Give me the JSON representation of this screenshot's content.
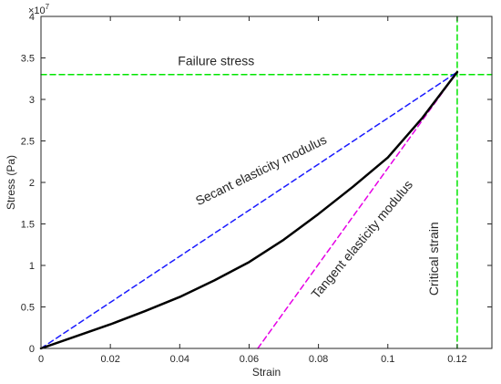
{
  "chart_data": {
    "type": "line",
    "xlabel": "Strain",
    "ylabel": "Stress (Pa)",
    "y_exponent_label": "×10",
    "y_exponent_power": "7",
    "xlim": [
      0,
      0.13
    ],
    "ylim": [
      0,
      40000000
    ],
    "x_ticks": [
      0,
      0.02,
      0.04,
      0.06,
      0.08,
      0.1,
      0.12
    ],
    "x_tick_labels": [
      "0",
      "0.02",
      "0.04",
      "0.06",
      "0.08",
      "0.1",
      "0.12"
    ],
    "y_ticks": [
      0,
      5000000,
      10000000,
      15000000,
      20000000,
      25000000,
      30000000,
      35000000,
      40000000
    ],
    "y_tick_labels": [
      "0",
      "0.5",
      "1",
      "1.5",
      "2",
      "2.5",
      "3",
      "3.5",
      "4"
    ],
    "grid": false,
    "series": [
      {
        "kind": "stress-strain curve",
        "color": "#000000",
        "style": "solid",
        "x": [
          0,
          0.01,
          0.02,
          0.03,
          0.04,
          0.05,
          0.06,
          0.07,
          0.08,
          0.09,
          0.1,
          0.11,
          0.12
        ],
        "y": [
          0,
          1450000,
          2900000,
          4500000,
          6200000,
          8200000,
          10400000,
          13100000,
          16200000,
          19500000,
          23000000,
          27800000,
          33300000
        ]
      },
      {
        "kind": "secant line",
        "color": "#1a1aff",
        "style": "dashed",
        "x": [
          0,
          0.12
        ],
        "y": [
          0,
          33300000
        ]
      },
      {
        "kind": "tangent line",
        "color": "#e600e6",
        "style": "dashed",
        "x": [
          0.0625,
          0.12
        ],
        "y": [
          0,
          33300000
        ]
      },
      {
        "kind": "failure stress level",
        "color": "#00e600",
        "style": "dashed",
        "orientation": "horizontal",
        "value": 33000000
      },
      {
        "kind": "critical strain level",
        "color": "#00e600",
        "style": "dashed",
        "orientation": "vertical",
        "value": 0.12
      }
    ],
    "annotations": [
      {
        "text": "Failure stress",
        "x": 0.0505,
        "y": 34100000,
        "rotation_deg": 0
      },
      {
        "text": "Secant elasticity modulus",
        "x": 0.064,
        "y": 21000000,
        "rotation_deg": -26
      },
      {
        "text": "Tangent elasticity modulus",
        "x": 0.0935,
        "y": 12800000,
        "rotation_deg": -50
      },
      {
        "text": "Critical strain",
        "x": 0.1145,
        "y": 10800000,
        "rotation_deg": -90
      }
    ]
  }
}
